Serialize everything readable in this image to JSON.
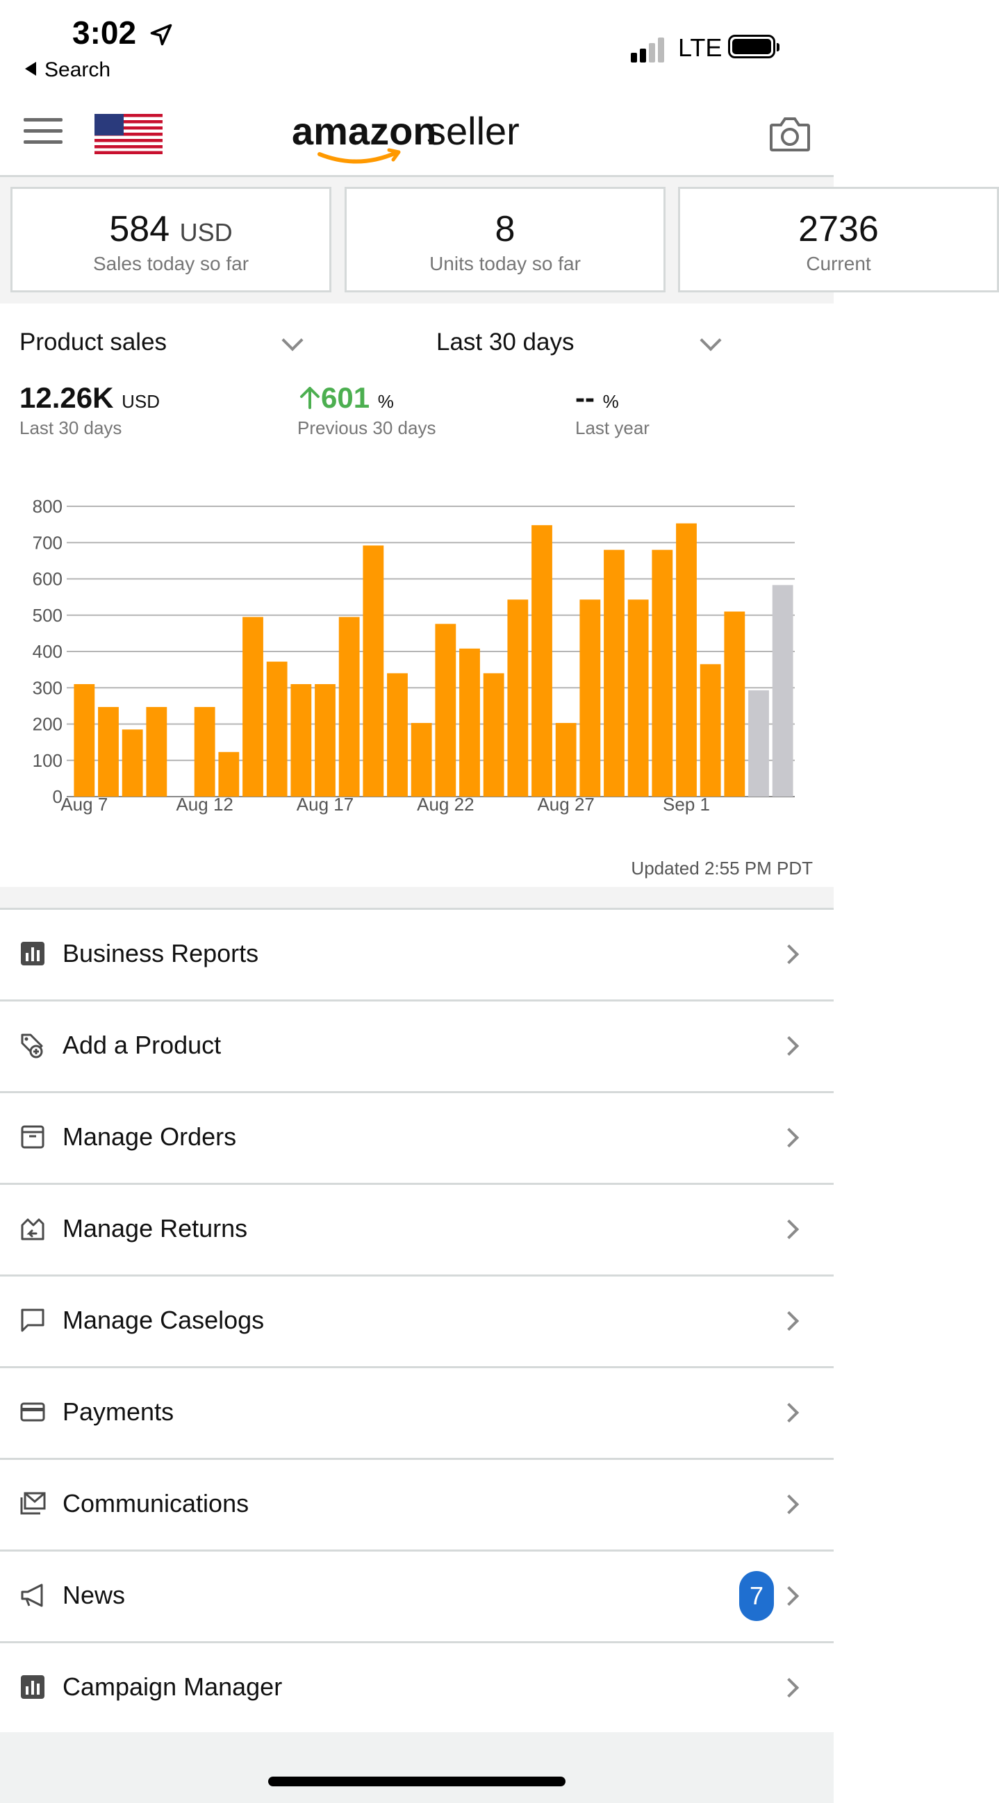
{
  "status_bar": {
    "time": "3:02",
    "back_label": "Search",
    "network": "LTE"
  },
  "header": {
    "logo_text": "amazon seller",
    "logo_word1": "amazon",
    "logo_word2": "seller"
  },
  "metrics": [
    {
      "value": "584",
      "unit": "USD",
      "label": "Sales today so far"
    },
    {
      "value": "8",
      "unit": "",
      "label": "Units today so far"
    },
    {
      "value": "2736",
      "unit": "",
      "label": "Current"
    }
  ],
  "sales": {
    "metric_dropdown": "Product sales",
    "period_dropdown": "Last 30 days",
    "total_value": "12.26K",
    "total_unit": "USD",
    "total_label": "Last 30 days",
    "change_value": "601",
    "change_unit": "%",
    "change_label": "Previous 30 days",
    "last_year_value": "--",
    "last_year_unit": "%",
    "last_year_label": "Last year",
    "updated": "Updated 2:55 PM PDT"
  },
  "chart_data": {
    "type": "bar",
    "ylim": [
      0,
      800
    ],
    "y_ticks": [
      0,
      100,
      200,
      300,
      400,
      500,
      600,
      700,
      800
    ],
    "x_tick_labels": [
      {
        "index": 0,
        "label": "Aug 7"
      },
      {
        "index": 5,
        "label": "Aug 12"
      },
      {
        "index": 10,
        "label": "Aug 17"
      },
      {
        "index": 15,
        "label": "Aug 22"
      },
      {
        "index": 20,
        "label": "Aug 27"
      },
      {
        "index": 25,
        "label": "Sep 1"
      }
    ],
    "values": [
      310,
      247,
      185,
      247,
      0,
      247,
      123,
      495,
      372,
      310,
      310,
      495,
      692,
      340,
      203,
      476,
      408,
      340,
      543,
      748,
      203,
      543,
      680,
      543,
      680,
      753,
      365,
      510,
      293,
      583
    ],
    "colors": [
      "#ff9900",
      "#ff9900",
      "#ff9900",
      "#ff9900",
      "#ff9900",
      "#ff9900",
      "#ff9900",
      "#ff9900",
      "#ff9900",
      "#ff9900",
      "#ff9900",
      "#ff9900",
      "#ff9900",
      "#ff9900",
      "#ff9900",
      "#ff9900",
      "#ff9900",
      "#ff9900",
      "#ff9900",
      "#ff9900",
      "#ff9900",
      "#ff9900",
      "#ff9900",
      "#ff9900",
      "#ff9900",
      "#ff9900",
      "#ff9900",
      "#ff9900",
      "#c8c8cd",
      "#c8c8cd"
    ],
    "grid": true
  },
  "menu": [
    {
      "label": "Business Reports",
      "icon": "bar-chart-icon",
      "badge": ""
    },
    {
      "label": "Add a Product",
      "icon": "add-tag-icon",
      "badge": ""
    },
    {
      "label": "Manage Orders",
      "icon": "box-icon",
      "badge": ""
    },
    {
      "label": "Manage Returns",
      "icon": "return-box-icon",
      "badge": ""
    },
    {
      "label": "Manage Caselogs",
      "icon": "chat-bubble-icon",
      "badge": ""
    },
    {
      "label": "Payments",
      "icon": "credit-card-icon",
      "badge": ""
    },
    {
      "label": "Communications",
      "icon": "mail-icon",
      "badge": ""
    },
    {
      "label": "News",
      "icon": "megaphone-icon",
      "badge": "7"
    },
    {
      "label": "Campaign Manager",
      "icon": "bar-chart-icon",
      "badge": ""
    }
  ],
  "colors": {
    "accent": "#ff9900",
    "badge": "#1f6fd0",
    "positive": "#4caf50",
    "projected": "#c8c8cd"
  }
}
